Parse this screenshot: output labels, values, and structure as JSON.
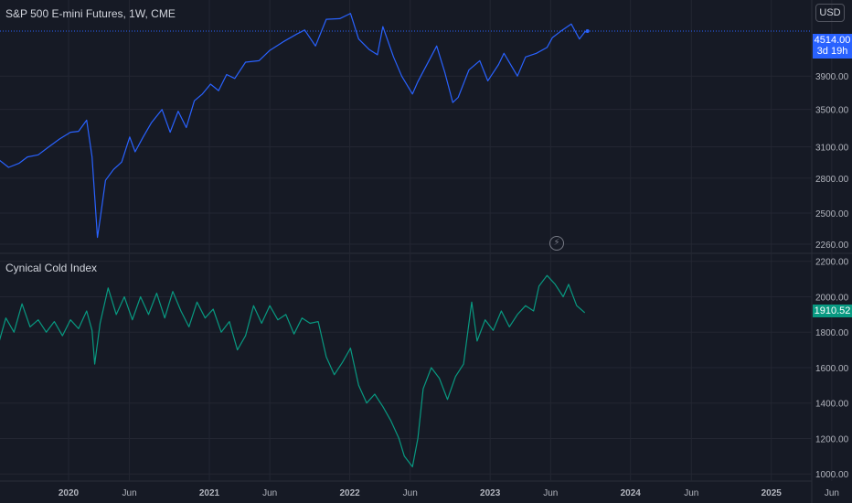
{
  "header": {
    "symbol_title": "S&P 500 E-mini Futures, 1W, CME",
    "currency": "USD"
  },
  "indicator": {
    "name": "Cynical Cold Index"
  },
  "last_price": {
    "value": "4514.00",
    "countdown": "3d 19h"
  },
  "indicator_last": {
    "value": "1910.52"
  },
  "icons": {
    "flash": "flash-icon"
  },
  "colors": {
    "background": "#161a25",
    "price_line": "#2962ff",
    "indicator_line": "#089981",
    "grid": "#232632",
    "text": "#b2b5be"
  },
  "chart_data": [
    {
      "type": "line",
      "title": "S&P 500 E-mini Futures, 1W, CME",
      "x_ticks": [
        "2020",
        "Jun",
        "2021",
        "Jun",
        "2022",
        "Jun",
        "2023",
        "Jun",
        "2024",
        "Jun",
        "2025",
        "Jun"
      ],
      "y_ticks": [
        2260,
        2500,
        2800,
        3100,
        3500,
        3900
      ],
      "ylim": [
        2200,
        4650
      ],
      "series": [
        {
          "points": [
            [
              "2019-07-01",
              2980
            ],
            [
              "2019-07-29",
              2900
            ],
            [
              "2019-08-26",
              2940
            ],
            [
              "2019-09-16",
              3000
            ],
            [
              "2019-10-14",
              3020
            ],
            [
              "2019-11-11",
              3100
            ],
            [
              "2019-12-09",
              3180
            ],
            [
              "2020-01-06",
              3250
            ],
            [
              "2020-01-27",
              3260
            ],
            [
              "2020-02-17",
              3380
            ],
            [
              "2020-03-02",
              3000
            ],
            [
              "2020-03-16",
              2310
            ],
            [
              "2020-03-23",
              2450
            ],
            [
              "2020-04-06",
              2780
            ],
            [
              "2020-04-27",
              2880
            ],
            [
              "2020-05-18",
              2950
            ],
            [
              "2020-06-08",
              3200
            ],
            [
              "2020-06-22",
              3050
            ],
            [
              "2020-07-13",
              3200
            ],
            [
              "2020-08-03",
              3350
            ],
            [
              "2020-08-31",
              3500
            ],
            [
              "2020-09-21",
              3250
            ],
            [
              "2020-10-12",
              3480
            ],
            [
              "2020-11-02",
              3300
            ],
            [
              "2020-11-23",
              3600
            ],
            [
              "2020-12-14",
              3680
            ],
            [
              "2021-01-04",
              3800
            ],
            [
              "2021-01-25",
              3720
            ],
            [
              "2021-02-15",
              3920
            ],
            [
              "2021-03-08",
              3870
            ],
            [
              "2021-04-05",
              4080
            ],
            [
              "2021-05-10",
              4100
            ],
            [
              "2021-06-07",
              4240
            ],
            [
              "2021-07-12",
              4360
            ],
            [
              "2021-08-16",
              4470
            ],
            [
              "2021-09-06",
              4530
            ],
            [
              "2021-10-04",
              4300
            ],
            [
              "2021-11-01",
              4690
            ],
            [
              "2021-12-06",
              4700
            ],
            [
              "2022-01-03",
              4780
            ],
            [
              "2022-01-24",
              4400
            ],
            [
              "2022-02-21",
              4250
            ],
            [
              "2022-03-14",
              4180
            ],
            [
              "2022-03-28",
              4580
            ],
            [
              "2022-04-25",
              4150
            ],
            [
              "2022-05-16",
              3900
            ],
            [
              "2022-06-13",
              3680
            ],
            [
              "2022-06-27",
              3830
            ],
            [
              "2022-08-15",
              4300
            ],
            [
              "2022-09-05",
              3950
            ],
            [
              "2022-09-26",
              3580
            ],
            [
              "2022-10-10",
              3640
            ],
            [
              "2022-11-07",
              3980
            ],
            [
              "2022-12-05",
              4100
            ],
            [
              "2022-12-26",
              3840
            ],
            [
              "2023-01-23",
              4050
            ],
            [
              "2023-02-06",
              4200
            ],
            [
              "2023-03-13",
              3900
            ],
            [
              "2023-04-03",
              4150
            ],
            [
              "2023-05-01",
              4200
            ],
            [
              "2023-05-29",
              4280
            ],
            [
              "2023-06-12",
              4420
            ],
            [
              "2023-07-03",
              4510
            ],
            [
              "2023-07-31",
              4620
            ],
            [
              "2023-08-21",
              4400
            ],
            [
              "2023-09-04",
              4500
            ],
            [
              "2023-09-11",
              4514
            ]
          ]
        }
      ]
    },
    {
      "type": "line",
      "title": "Cynical Cold Index",
      "y_ticks": [
        1000,
        1200,
        1400,
        1600,
        1800,
        2000,
        2200
      ],
      "ylim": [
        970,
        2240
      ],
      "series": [
        {
          "points": [
            [
              "2019-07-01",
              1720
            ],
            [
              "2019-07-22",
              1880
            ],
            [
              "2019-08-12",
              1800
            ],
            [
              "2019-09-02",
              1960
            ],
            [
              "2019-09-23",
              1830
            ],
            [
              "2019-10-14",
              1870
            ],
            [
              "2019-11-04",
              1800
            ],
            [
              "2019-11-25",
              1860
            ],
            [
              "2019-12-16",
              1780
            ],
            [
              "2020-01-06",
              1870
            ],
            [
              "2020-01-27",
              1820
            ],
            [
              "2020-02-17",
              1920
            ],
            [
              "2020-03-02",
              1810
            ],
            [
              "2020-03-09",
              1620
            ],
            [
              "2020-03-23",
              1850
            ],
            [
              "2020-04-13",
              2050
            ],
            [
              "2020-05-04",
              1900
            ],
            [
              "2020-05-25",
              2000
            ],
            [
              "2020-06-15",
              1870
            ],
            [
              "2020-07-06",
              2000
            ],
            [
              "2020-07-27",
              1900
            ],
            [
              "2020-08-17",
              2020
            ],
            [
              "2020-09-07",
              1880
            ],
            [
              "2020-09-28",
              2030
            ],
            [
              "2020-10-19",
              1920
            ],
            [
              "2020-11-09",
              1830
            ],
            [
              "2020-11-30",
              1970
            ],
            [
              "2020-12-21",
              1880
            ],
            [
              "2021-01-11",
              1930
            ],
            [
              "2021-02-01",
              1800
            ],
            [
              "2021-02-22",
              1860
            ],
            [
              "2021-03-15",
              1700
            ],
            [
              "2021-04-05",
              1780
            ],
            [
              "2021-04-26",
              1950
            ],
            [
              "2021-05-17",
              1850
            ],
            [
              "2021-06-07",
              1950
            ],
            [
              "2021-06-28",
              1870
            ],
            [
              "2021-07-19",
              1900
            ],
            [
              "2021-08-09",
              1790
            ],
            [
              "2021-08-30",
              1880
            ],
            [
              "2021-09-20",
              1850
            ],
            [
              "2021-10-11",
              1860
            ],
            [
              "2021-11-01",
              1660
            ],
            [
              "2021-11-22",
              1560
            ],
            [
              "2021-12-13",
              1630
            ],
            [
              "2022-01-03",
              1710
            ],
            [
              "2022-01-24",
              1500
            ],
            [
              "2022-02-14",
              1400
            ],
            [
              "2022-03-07",
              1450
            ],
            [
              "2022-03-28",
              1380
            ],
            [
              "2022-04-18",
              1300
            ],
            [
              "2022-05-09",
              1200
            ],
            [
              "2022-05-23",
              1100
            ],
            [
              "2022-06-13",
              1040
            ],
            [
              "2022-06-27",
              1200
            ],
            [
              "2022-07-11",
              1480
            ],
            [
              "2022-08-01",
              1600
            ],
            [
              "2022-08-22",
              1540
            ],
            [
              "2022-09-12",
              1420
            ],
            [
              "2022-10-03",
              1550
            ],
            [
              "2022-10-24",
              1620
            ],
            [
              "2022-11-14",
              1970
            ],
            [
              "2022-11-28",
              1750
            ],
            [
              "2022-12-19",
              1870
            ],
            [
              "2023-01-09",
              1810
            ],
            [
              "2023-01-30",
              1920
            ],
            [
              "2023-02-20",
              1830
            ],
            [
              "2023-03-13",
              1900
            ],
            [
              "2023-04-03",
              1950
            ],
            [
              "2023-04-24",
              1920
            ],
            [
              "2023-05-08",
              2060
            ],
            [
              "2023-05-29",
              2120
            ],
            [
              "2023-06-19",
              2070
            ],
            [
              "2023-07-10",
              2000
            ],
            [
              "2023-07-24",
              2070
            ],
            [
              "2023-08-14",
              1950
            ],
            [
              "2023-09-04",
              1910
            ]
          ]
        }
      ]
    }
  ]
}
